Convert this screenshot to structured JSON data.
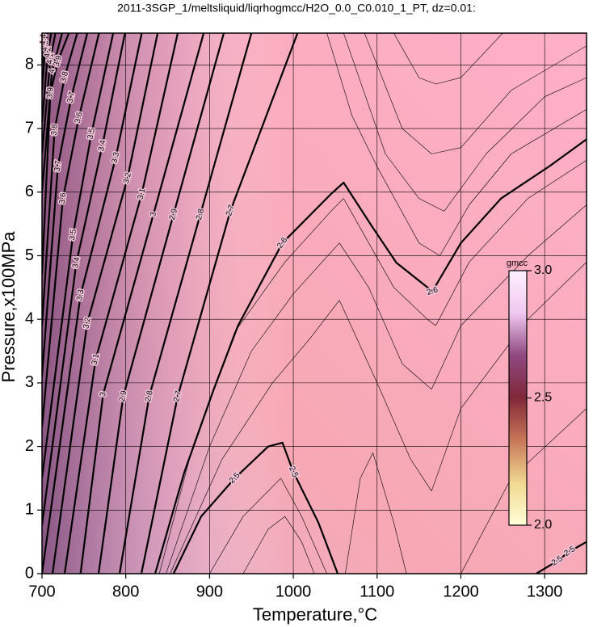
{
  "chart_data": {
    "type": "contour",
    "title": "2011-3SGP_1/meltsliquid/liqrhogmcc/H2O_0.0_C0.010_1_PT, dz=0.01:",
    "x_label": "Temperature,°C",
    "y_label": "Pressure,x100MPa",
    "xlim": [
      700,
      1350
    ],
    "ylim": [
      0,
      8.5
    ],
    "xticks": [
      700,
      800,
      900,
      1000,
      1100,
      1200,
      1300
    ],
    "yticks": [
      0,
      1,
      2,
      3,
      4,
      5,
      6,
      7,
      8
    ],
    "grid": true,
    "line_color": "#000000",
    "contours": [
      {
        "level": 2.5,
        "T": [
          857,
          890,
          930,
          970,
          987,
          1000,
          1030,
          1053
        ],
        "P": [
          0,
          0.9,
          1.5,
          2.0,
          2.06,
          1.6,
          0.8,
          0
        ]
      },
      {
        "level": 2.5,
        "T": [
          1290,
          1315,
          1330,
          1350
        ],
        "P": [
          0,
          0.2,
          0.35,
          0.5
        ]
      },
      {
        "level": 2.6,
        "T": [
          835,
          870,
          905,
          934,
          987,
          1045,
          1060,
          1094,
          1123,
          1166,
          1200,
          1248,
          1306,
          1350
        ],
        "P": [
          0,
          1.6,
          2.9,
          3.9,
          5.2,
          5.97,
          6.15,
          5.46,
          4.89,
          4.44,
          5.2,
          5.9,
          6.41,
          6.83
        ]
      },
      {
        "level": 2.7,
        "T": [
          818.6,
          862,
          925,
          1005
        ],
        "P": [
          0,
          2.79,
          5.71,
          8.5
        ]
      },
      {
        "level": 2.8,
        "T": [
          792.6,
          828,
          889,
          950
        ],
        "P": [
          0,
          2.79,
          5.65,
          8.5
        ]
      },
      {
        "level": 2.9,
        "T": [
          767.5,
          797,
          857,
          917
        ],
        "P": [
          0,
          2.79,
          5.65,
          8.5
        ]
      },
      {
        "level": 3,
        "T": [
          746,
          773,
          833,
          893
        ],
        "P": [
          0,
          2.82,
          5.65,
          8.5
        ]
      },
      {
        "level": 3.1,
        "T": [
          727,
          764,
          819,
          862
        ],
        "P": [
          0,
          3.37,
          5.97,
          8.5
        ]
      },
      {
        "level": 3.2,
        "T": [
          712.5,
          754,
          802,
          838
        ],
        "P": [
          0,
          3.94,
          6.22,
          8.5
        ]
      },
      {
        "level": 3.3,
        "T": [
          700,
          746,
          788,
          819
        ],
        "P": [
          0,
          4.38,
          6.54,
          8.5
        ]
      },
      {
        "level": 3.4,
        "T": [
          700,
          741,
          772,
          799
        ],
        "P": [
          0.76,
          4.89,
          6.73,
          8.5
        ]
      },
      {
        "level": 3.5,
        "T": [
          700,
          737,
          759,
          785
        ],
        "P": [
          1.5,
          5.33,
          6.92,
          8.5
        ]
      },
      {
        "level": 3.6,
        "T": [
          700,
          725,
          744,
          768
        ],
        "P": [
          2.3,
          5.9,
          7.17,
          8.5
        ]
      },
      {
        "level": 3.7,
        "T": [
          700,
          719,
          735,
          754
        ],
        "P": [
          3.1,
          6.41,
          7.49,
          8.5
        ]
      },
      {
        "level": 3.8,
        "T": [
          700,
          715,
          727,
          742
        ],
        "P": [
          3.9,
          6.98,
          7.81,
          8.5
        ]
      },
      {
        "level": 3.9,
        "T": [
          700,
          710,
          719,
          732
        ],
        "P": [
          4.7,
          7.56,
          8.06,
          8.5
        ]
      },
      {
        "level": 4,
        "T": [
          700,
          712,
          724
        ],
        "P": [
          6.0,
          7.9,
          8.5
        ]
      },
      {
        "level": 4.1,
        "T": [
          700,
          710,
          716
        ],
        "P": [
          6.6,
          8.1,
          8.5
        ]
      },
      {
        "level": 4.2,
        "T": [
          700,
          707,
          711
        ],
        "P": [
          7.1,
          8.2,
          8.5
        ]
      },
      {
        "level": 4.3,
        "T": [
          700,
          704,
          706
        ],
        "P": [
          7.6,
          8.3,
          8.5
        ]
      },
      {
        "level": 4.4,
        "T": [
          700,
          702,
          703
        ],
        "P": [
          8.0,
          8.4,
          8.5
        ]
      },
      {
        "level": 2.61,
        "T": [
          1040,
          1070,
          1100,
          1150,
          1175,
          1210,
          1260,
          1350
        ],
        "P": [
          8.5,
          7.2,
          6.4,
          5.2,
          5.0,
          5.8,
          6.6,
          7.3
        ]
      },
      {
        "level": 2.62,
        "T": [
          1060,
          1110,
          1150,
          1180,
          1230,
          1300,
          1350
        ],
        "P": [
          8.5,
          6.6,
          5.9,
          5.7,
          6.6,
          7.5,
          7.8
        ]
      },
      {
        "level": 2.63,
        "T": [
          1085,
          1130,
          1165,
          1200,
          1260,
          1350
        ],
        "P": [
          8.5,
          7.0,
          6.6,
          6.7,
          7.6,
          8.3
        ]
      },
      {
        "level": 2.64,
        "T": [
          1120,
          1150,
          1170,
          1200,
          1250
        ],
        "P": [
          8.5,
          7.8,
          7.7,
          7.8,
          8.5
        ]
      },
      {
        "level": 2.59,
        "T": [
          840,
          880,
          930,
          990,
          1045,
          1060,
          1090,
          1120,
          1160,
          1170,
          1210,
          1280,
          1350
        ],
        "P": [
          0,
          2.0,
          3.8,
          4.9,
          5.7,
          5.9,
          5.2,
          4.5,
          4.0,
          3.9,
          4.9,
          5.9,
          6.5
        ]
      },
      {
        "level": 2.57,
        "T": [
          848,
          900,
          950,
          1000,
          1055,
          1090,
          1130,
          1165,
          1200,
          1280,
          1350
        ],
        "P": [
          0,
          2.0,
          3.5,
          4.4,
          5.2,
          4.5,
          3.3,
          2.9,
          3.9,
          5.0,
          5.8
        ]
      },
      {
        "level": 2.55,
        "T": [
          853,
          915,
          975,
          1020,
          1055,
          1100,
          1140,
          1165,
          1200,
          1280,
          1350
        ],
        "P": [
          0,
          1.8,
          3.0,
          3.7,
          4.3,
          3.0,
          1.8,
          1.3,
          2.6,
          4.0,
          4.9
        ]
      },
      {
        "level": 2.53,
        "T": [
          1062,
          1080,
          1095,
          1120,
          1135
        ],
        "P": [
          0,
          1.5,
          1.9,
          0.8,
          0
        ]
      },
      {
        "level": 2.53,
        "T": [
          1200,
          1260,
          1350
        ],
        "P": [
          0,
          1.5,
          2.6
        ]
      },
      {
        "level": 2.48,
        "T": [
          900,
          940,
          985,
          1010,
          1040
        ],
        "P": [
          0,
          0.9,
          1.5,
          0.9,
          0
        ]
      },
      {
        "level": 2.46,
        "T": [
          940,
          970,
          990,
          1010,
          1025
        ],
        "P": [
          0,
          0.7,
          0.9,
          0.5,
          0
        ]
      }
    ],
    "colorbar": {
      "label": "gmcc",
      "lim": [
        2.0,
        3.0
      ],
      "ticks": [
        {
          "value": 2,
          "label": "2.0"
        },
        {
          "value": 2.5,
          "label": "2.5"
        },
        {
          "value": 3,
          "label": "3.0"
        }
      ],
      "colormap": [
        "#ffffd8",
        "#f0d890",
        "#c87858",
        "#802838",
        "#904880",
        "#f0c8f0",
        "#fff0ff"
      ]
    }
  }
}
